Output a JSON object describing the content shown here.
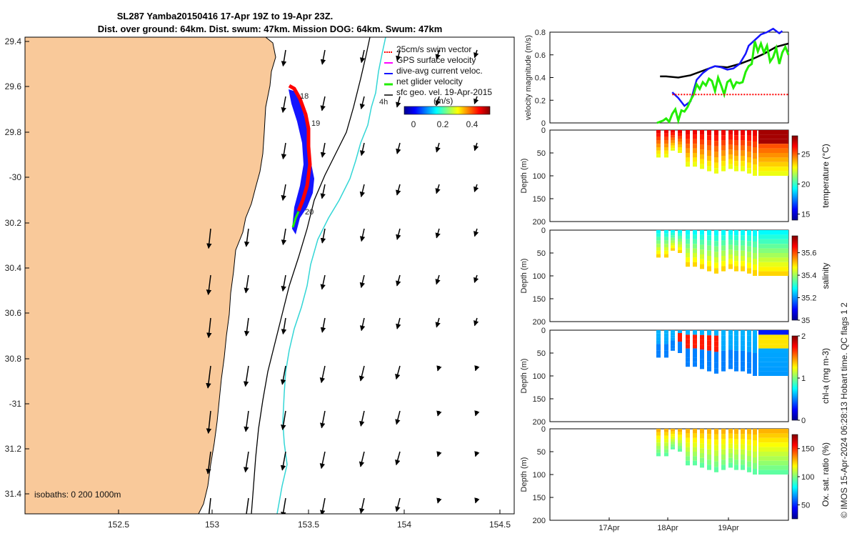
{
  "colors": {
    "land": "#f9c99a",
    "isobath_shallow": "#000000",
    "isobath_deep": "#33d6d6",
    "track_red": "#ff0000",
    "track_blue": "#1414ff",
    "net_green": "#22ee00",
    "gps_magenta": "#ff00ff"
  },
  "title": {
    "line1": "SL287 Yamba20150416 17-Apr 19Z to 19-Apr 23Z.",
    "line2": "Dist. over ground: 64km. Dist. swum: 47km. Mission DOG: 64km. Swum: 47km"
  },
  "map": {
    "lat_ticks": [
      "29.4",
      "29.6",
      "29.8",
      "-30",
      "30.2",
      "30.4",
      "30.6",
      "30.8",
      "-31",
      "31.2",
      "31.4"
    ],
    "lon_ticks": [
      "152.5",
      "153",
      "153.5",
      "154",
      "154.5"
    ],
    "day_labels": [
      "18",
      "19",
      "20"
    ],
    "time_note": "4h",
    "isobath_note": "isobaths: 0   200  1000m",
    "legend": [
      {
        "label": "25cm/s swim vector",
        "color": "#ff0000"
      },
      {
        "label": "GPS surface velocity",
        "color": "#ff00ff"
      },
      {
        "label": "dive-avg current veloc.",
        "color": "#1414ff"
      },
      {
        "label": "net glider velocity",
        "color": "#22ee00"
      },
      {
        "label": "sfc geo. vel. 19-Apr-2015",
        "color": "#000000"
      }
    ],
    "colorbar": {
      "title": "(m/s)",
      "ticks": [
        "0",
        "0.2",
        "0.4"
      ]
    }
  },
  "chart_data": [
    {
      "type": "line",
      "title": "",
      "ylabel": "velocity magnitude (m/s)",
      "ylim": [
        0,
        0.8
      ],
      "yticks": [
        "0",
        "0.2",
        "0.4",
        "0.6",
        "0.8"
      ],
      "x_unit": "days since 17-Apr 00Z",
      "xlim": [
        -0.9,
        3.0
      ],
      "series": [
        {
          "name": "sfc geo. vel. 19-Apr-2015",
          "color": "#000000",
          "x": [
            0.9,
            1.0,
            1.2,
            1.4,
            1.6,
            1.8,
            2.0,
            2.2,
            2.4,
            2.6,
            2.8,
            3.0
          ],
          "y": [
            0.41,
            0.41,
            0.4,
            0.42,
            0.46,
            0.5,
            0.49,
            0.52,
            0.56,
            0.61,
            0.67,
            0.7
          ]
        },
        {
          "name": "dive-avg current veloc.",
          "color": "#1414ff",
          "x": [
            1.1,
            1.2,
            1.3,
            1.4,
            1.5,
            1.6,
            1.7,
            1.8,
            1.9,
            2.0,
            2.1,
            2.2,
            2.3,
            2.35,
            2.45,
            2.55,
            2.65,
            2.75,
            2.85,
            2.9
          ],
          "y": [
            0.27,
            0.22,
            0.15,
            0.19,
            0.38,
            0.44,
            0.48,
            0.5,
            0.49,
            0.47,
            0.48,
            0.52,
            0.61,
            0.68,
            0.73,
            0.78,
            0.8,
            0.83,
            0.79,
            0.81
          ]
        },
        {
          "name": "net glider velocity",
          "color": "#22ee00",
          "x": [
            0.85,
            0.95,
            1.0,
            1.05,
            1.1,
            1.15,
            1.2,
            1.25,
            1.3,
            1.35,
            1.4,
            1.45,
            1.5,
            1.55,
            1.6,
            1.65,
            1.7,
            1.75,
            1.8,
            1.85,
            1.9,
            1.95,
            2.0,
            2.05,
            2.1,
            2.15,
            2.2,
            2.25,
            2.3,
            2.35,
            2.4,
            2.45,
            2.5,
            2.55,
            2.6,
            2.65,
            2.7,
            2.75,
            2.8,
            2.85,
            2.9,
            2.95,
            3.0
          ],
          "y": [
            0.0,
            0.02,
            0.04,
            0.01,
            0.08,
            0.12,
            0.02,
            0.11,
            0.1,
            0.14,
            0.2,
            0.25,
            0.34,
            0.3,
            0.36,
            0.33,
            0.39,
            0.37,
            0.28,
            0.4,
            0.33,
            0.25,
            0.36,
            0.38,
            0.31,
            0.36,
            0.35,
            0.36,
            0.45,
            0.5,
            0.52,
            0.72,
            0.63,
            0.7,
            0.62,
            0.68,
            0.54,
            0.58,
            0.66,
            0.52,
            0.62,
            0.67,
            0.6
          ]
        },
        {
          "name": "25cm/s swim vector",
          "color": "#ff0000",
          "x": [
            1.1,
            1.2,
            1.3,
            1.4,
            1.5,
            1.6,
            1.7,
            1.8,
            1.9,
            2.0,
            2.1,
            2.2,
            2.3,
            2.4,
            2.5,
            2.6,
            2.7,
            2.8,
            2.9,
            3.0
          ],
          "y": [
            0.25,
            0.25,
            0.25,
            0.25,
            0.25,
            0.25,
            0.25,
            0.25,
            0.25,
            0.25,
            0.25,
            0.25,
            0.25,
            0.25,
            0.25,
            0.25,
            0.25,
            0.25,
            0.25,
            0.25
          ]
        }
      ]
    },
    {
      "type": "heatmap",
      "ylabel": "Depth (m)",
      "cbar_label": "temperature (°C)",
      "ylim": [
        200,
        0
      ],
      "yticks": [
        "0",
        "50",
        "100",
        "150",
        "200"
      ],
      "cbar_ticks": [
        "15",
        "20",
        "25"
      ],
      "cbar_range": [
        14,
        28
      ],
      "surface_value": 26.5,
      "deep_value": 22.5
    },
    {
      "type": "heatmap",
      "ylabel": "Depth (m)",
      "cbar_label": "salinity",
      "ylim": [
        200,
        0
      ],
      "yticks": [
        "0",
        "50",
        "100",
        "150",
        "200"
      ],
      "cbar_ticks": [
        "35",
        "35.2",
        "35.4",
        "35.6"
      ],
      "cbar_range": [
        35.0,
        35.75
      ],
      "surface_value": 35.28,
      "deep_value": 35.5
    },
    {
      "type": "heatmap",
      "ylabel": "Depth (m)",
      "cbar_label": "chl-a (mg m-3)",
      "ylim": [
        200,
        0
      ],
      "yticks": [
        "0",
        "50",
        "100",
        "150",
        "200"
      ],
      "cbar_ticks": [
        "0",
        "1",
        "2"
      ],
      "cbar_range": [
        0,
        2
      ],
      "surface_value": 0.6,
      "deep_value": 0.55
    },
    {
      "type": "heatmap",
      "ylabel": "Depth (m)",
      "cbar_label": "Ox. sat. ratio (%)",
      "ylim": [
        200,
        0
      ],
      "yticks": [
        "0",
        "50",
        "100",
        "150",
        "200"
      ],
      "cbar_ticks": [
        "50",
        "100",
        "150"
      ],
      "cbar_range": [
        25,
        175
      ],
      "surface_value": 130,
      "deep_value": 95
    }
  ],
  "time_axis": {
    "ticks": [
      "17Apr",
      "18Apr",
      "19Apr"
    ]
  },
  "footer": "© IMOS 15-Apr-2024 06:28:13 Hobart time. QC flags 1  2"
}
